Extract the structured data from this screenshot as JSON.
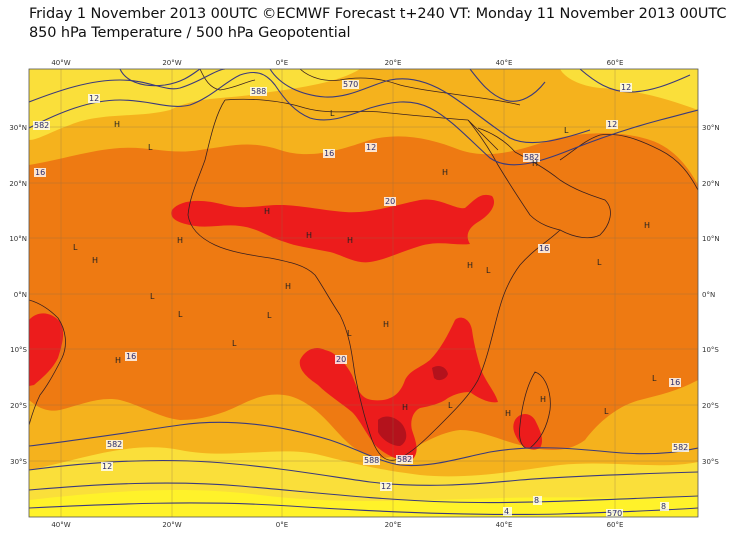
{
  "title_line1": "Friday 1 November 2013 00UTC ©ECMWF Forecast t+240 VT: Monday 11 November 2013 00UTC",
  "title_line2": "850 hPa Temperature / 500 hPa Geopotential",
  "axes": {
    "longitude_ticks": [
      "40°W",
      "20°W",
      "0°E",
      "20°E",
      "40°E",
      "60°E"
    ],
    "latitude_ticks": [
      "30°N",
      "20°N",
      "10°N",
      "0°N",
      "10°S",
      "20°S",
      "30°S"
    ]
  },
  "colors": {
    "band_12_16": "#f5b21d",
    "band_16_20": "#ee7a12",
    "band_20_plus": "#ec1c1c",
    "band_24_plus": "#b4121c",
    "band_8_12": "#fadf3a",
    "band_4_8": "#fff22a",
    "contour_line": "#3b3a7c",
    "coast_line": "#3a2020"
  },
  "temperature_labels": [
    "12",
    "16",
    "12",
    "20",
    "16",
    "20",
    "16",
    "16",
    "12",
    "12",
    "8",
    "8",
    "4",
    "12",
    "12",
    "16"
  ],
  "geopotential_labels": [
    "570",
    "582",
    "582",
    "588",
    "582",
    "582",
    "582",
    "570",
    "588"
  ],
  "pressure_markers": [
    "H",
    "L"
  ]
}
